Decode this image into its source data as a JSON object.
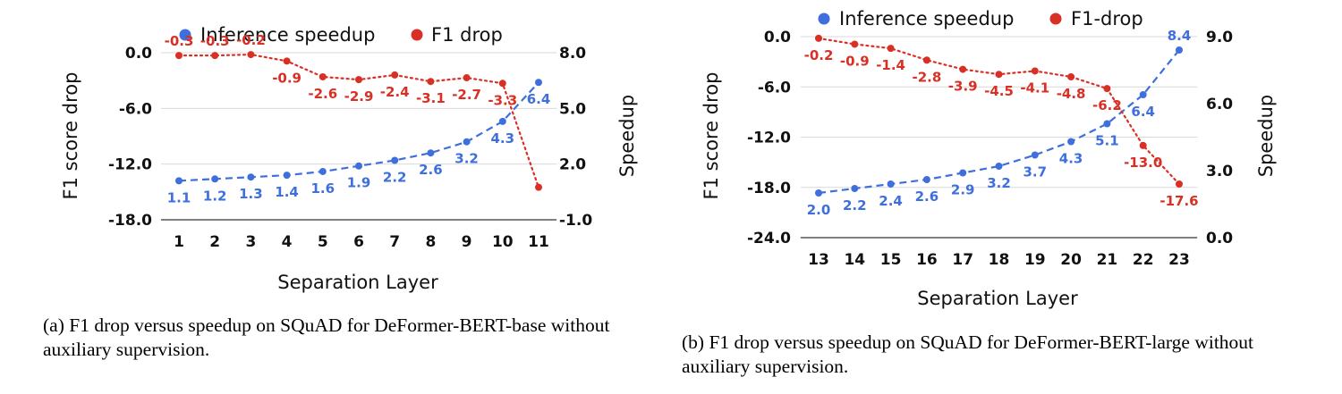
{
  "colors": {
    "speedup": "#3f6fdc",
    "f1": "#d93025",
    "grid": "#d9d9d9",
    "text": "#111111"
  },
  "chart_data": [
    {
      "type": "line",
      "caption": "(a) F1 drop versus speedup on SQuAD for DeFormer-BERT-base without auxiliary supervision.",
      "xlabel": "Separation Layer",
      "ylabel_left": "F1 score drop",
      "ylabel_right": "Speedup",
      "categories": [
        "1",
        "2",
        "3",
        "4",
        "5",
        "6",
        "7",
        "8",
        "9",
        "10",
        "11"
      ],
      "ylim_left": [
        -18,
        0
      ],
      "yticks_left": [
        "-18.0",
        "-12.0",
        "-6.0",
        "0.0"
      ],
      "ylim_right": [
        -1,
        8
      ],
      "yticks_right": [
        "-1.0",
        "2.0",
        "5.0",
        "8.0"
      ],
      "legend": [
        "Inference speedup",
        "F1 drop"
      ],
      "series": [
        {
          "name": "Inference speedup",
          "axis": "right",
          "style": "dashed",
          "values": [
            1.1,
            1.2,
            1.3,
            1.4,
            1.6,
            1.9,
            2.2,
            2.6,
            3.2,
            4.3,
            6.4
          ],
          "labels": [
            "1.1",
            "1.2",
            "1.3",
            "1.4",
            "1.6",
            "1.9",
            "2.2",
            "2.6",
            "3.2",
            "4.3",
            "6.4"
          ]
        },
        {
          "name": "F1 drop",
          "axis": "left",
          "style": "dotted",
          "values": [
            -0.3,
            -0.3,
            -0.2,
            -0.9,
            -2.6,
            -2.9,
            -2.4,
            -3.1,
            -2.7,
            -3.3,
            -14.5
          ],
          "labels": [
            "-0.3",
            "-0.3",
            "-0.2",
            "-0.9",
            "-2.6",
            "-2.9",
            "-2.4",
            "-3.1",
            "-2.7",
            "-3.3",
            ""
          ]
        }
      ]
    },
    {
      "type": "line",
      "caption": "(b) F1 drop versus speedup on SQuAD for DeFormer-BERT-large without auxiliary supervision.",
      "xlabel": "Separation Layer",
      "ylabel_left": "F1 score drop",
      "ylabel_right": "Speedup",
      "categories": [
        "13",
        "14",
        "15",
        "16",
        "17",
        "18",
        "19",
        "20",
        "21",
        "22",
        "23"
      ],
      "ylim_left": [
        -24,
        0
      ],
      "yticks_left": [
        "-24.0",
        "-18.0",
        "-12.0",
        "-6.0",
        "0.0"
      ],
      "ylim_right": [
        0,
        9
      ],
      "yticks_right": [
        "0.0",
        "3.0",
        "6.0",
        "9.0"
      ],
      "legend": [
        "Inference speedup",
        "F1-drop"
      ],
      "series": [
        {
          "name": "Inference speedup",
          "axis": "right",
          "style": "dashed",
          "values": [
            2.0,
            2.2,
            2.4,
            2.6,
            2.9,
            3.2,
            3.7,
            4.3,
            5.1,
            6.4,
            8.4
          ],
          "labels": [
            "2.0",
            "2.2",
            "2.4",
            "2.6",
            "2.9",
            "3.2",
            "3.7",
            "4.3",
            "5.1",
            "6.4",
            "8.4"
          ]
        },
        {
          "name": "F1-drop",
          "axis": "left",
          "style": "dotted",
          "values": [
            -0.2,
            -0.9,
            -1.4,
            -2.8,
            -3.9,
            -4.5,
            -4.1,
            -4.8,
            -6.2,
            -13.0,
            -17.6
          ],
          "labels": [
            "-0.2",
            "-0.9",
            "-1.4",
            "-2.8",
            "-3.9",
            "-4.5",
            "-4.1",
            "-4.8",
            "-6.2",
            "-13.0",
            "-17.6"
          ]
        }
      ]
    }
  ]
}
